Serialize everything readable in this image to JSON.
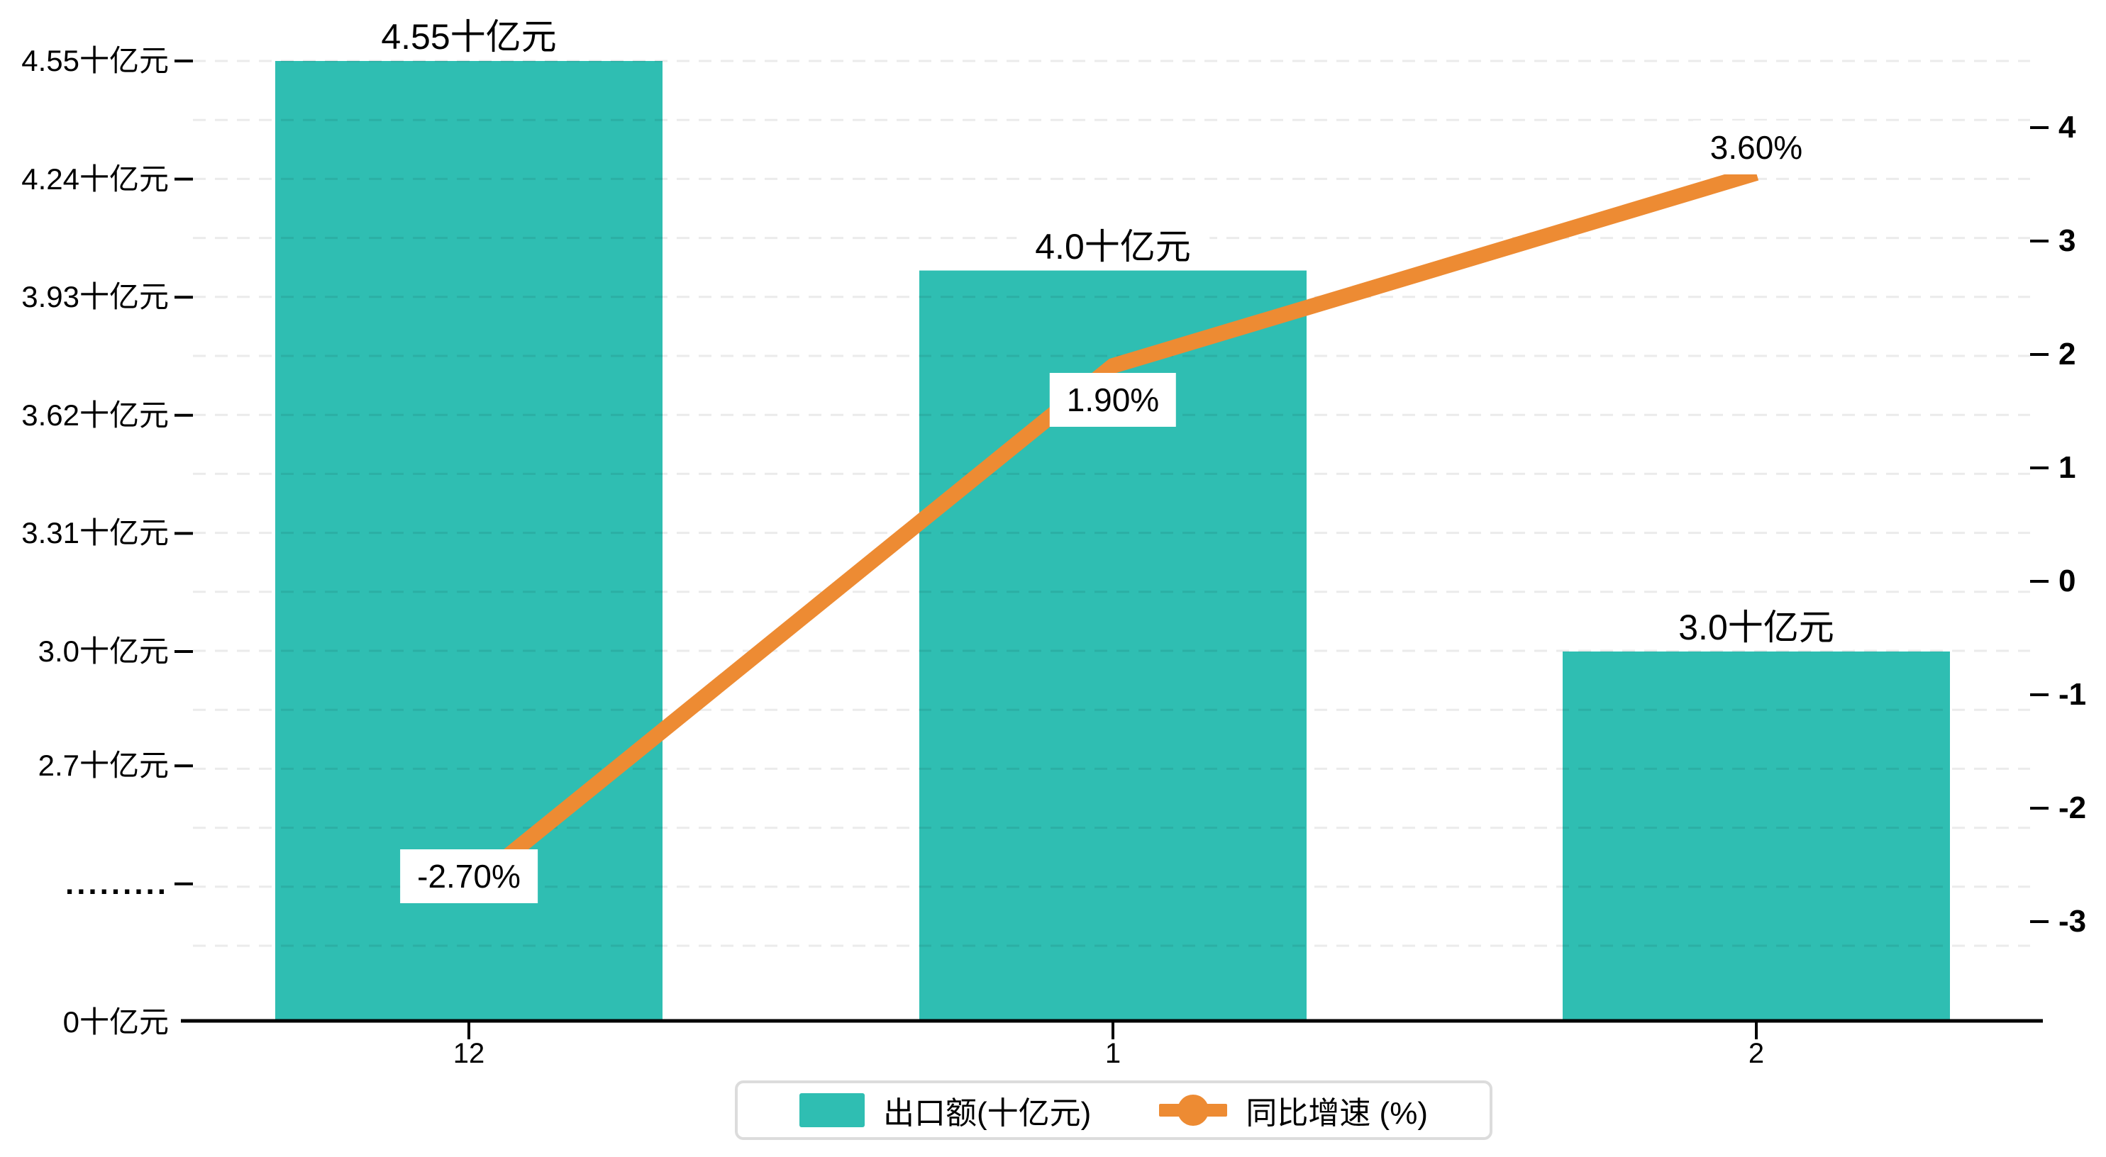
{
  "chart_data": {
    "type": "combo",
    "categories": [
      "12",
      "1",
      "2"
    ],
    "series": [
      {
        "name": "出口额(十亿元)",
        "type": "bar",
        "axis": "left",
        "values": [
          4.55,
          4.0,
          3.0
        ],
        "data_labels": [
          "4.55十亿元",
          "4.0十亿元",
          "3.0十亿元"
        ],
        "color": "#2FBEB2"
      },
      {
        "name": "同比增速 (%)",
        "type": "line",
        "axis": "right",
        "values": [
          -2.7,
          1.9,
          3.6
        ],
        "data_labels": [
          "-2.70%",
          "1.90%",
          "3.60%"
        ],
        "color": "#ED8B33"
      }
    ],
    "left_axis": {
      "unit": "十亿元",
      "tick_labels": [
        "4.55十亿元",
        "4.24十亿元",
        "3.93十亿元",
        "3.62十亿元",
        "3.31十亿元",
        "3.0十亿元",
        "2.7十亿元"
      ],
      "tick_values": [
        4.55,
        4.24,
        3.93,
        3.62,
        3.31,
        3.0,
        2.7
      ],
      "break_label": ".........",
      "break_value": 2.39,
      "zero_label": "0十亿元"
    },
    "right_axis": {
      "tick_labels": [
        "4",
        "3",
        "2",
        "1",
        "0",
        "-1",
        "-2",
        "-3"
      ],
      "tick_values": [
        4,
        3,
        2,
        1,
        0,
        -1,
        -2,
        -3
      ]
    },
    "grid": {
      "dashed": true,
      "on": true
    },
    "legend_position": "bottom",
    "title": "",
    "xlabel": "",
    "ylabel_left": "十亿元",
    "ylabel_right": "%"
  },
  "colors": {
    "bar": "#2FBEB2",
    "line": "#ED8B33",
    "grid": "rgba(0,0,0,0.08)",
    "axis": "#000000",
    "label_bg": "#ffffff",
    "legend_border": "#dcdcdc"
  }
}
